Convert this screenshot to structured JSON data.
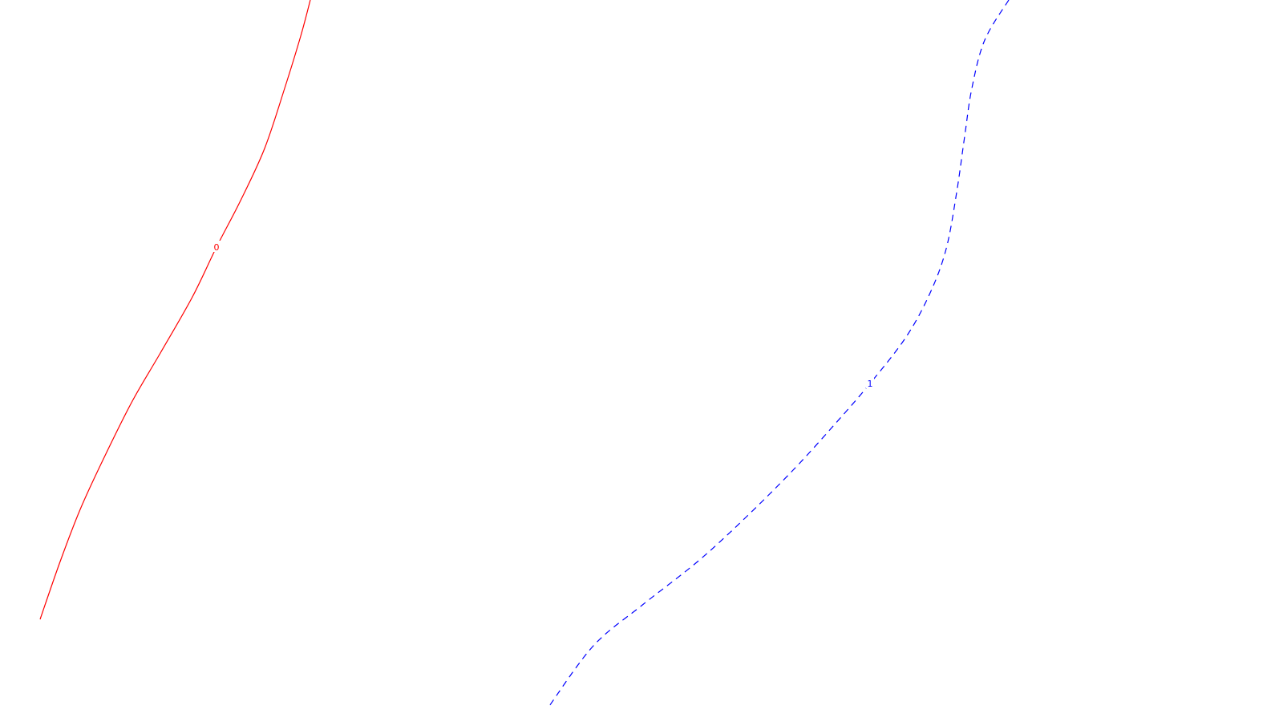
{
  "chart_data": {
    "type": "line",
    "title": "",
    "xlabel": "",
    "ylabel": "",
    "grid": false,
    "legend": "none",
    "series": [
      {
        "label": "0",
        "color": "#ff0000",
        "style": "solid",
        "points": [
          [
            387,
            0
          ],
          [
            375,
            45
          ],
          [
            355,
            110
          ],
          [
            330,
            185
          ],
          [
            300,
            250
          ],
          [
            270,
            308
          ],
          [
            240,
            370
          ],
          [
            200,
            440
          ],
          [
            165,
            500
          ],
          [
            130,
            570
          ],
          [
            100,
            635
          ],
          [
            75,
            700
          ],
          [
            50,
            772
          ]
        ],
        "label_at": [
          270,
          308
        ]
      },
      {
        "label": "1",
        "color": "#0000ff",
        "style": "dashed",
        "points": [
          [
            1258,
            0
          ],
          [
            1228,
            50
          ],
          [
            1212,
            110
          ],
          [
            1203,
            170
          ],
          [
            1193,
            240
          ],
          [
            1180,
            310
          ],
          [
            1160,
            365
          ],
          [
            1130,
            420
          ],
          [
            1085,
            478
          ],
          [
            1040,
            530
          ],
          [
            990,
            585
          ],
          [
            930,
            645
          ],
          [
            870,
            700
          ],
          [
            800,
            755
          ],
          [
            740,
            805
          ],
          [
            685,
            880
          ]
        ],
        "label_at": [
          1085,
          478
        ]
      }
    ]
  }
}
